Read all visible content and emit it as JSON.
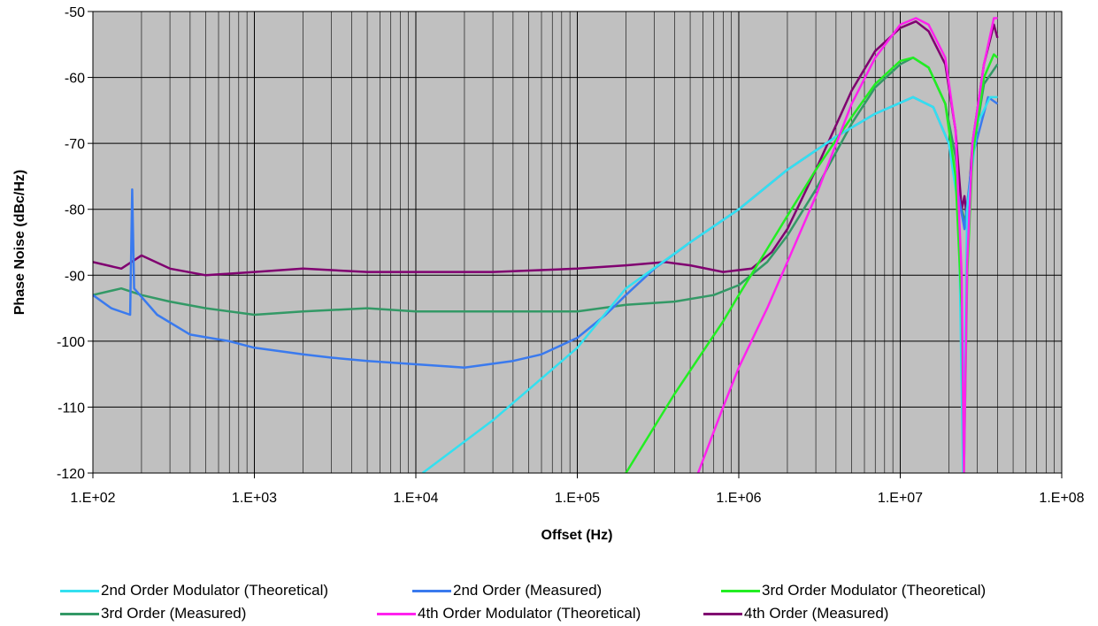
{
  "chart_data": {
    "type": "line",
    "xlabel": "Offset (Hz)",
    "ylabel": "Phase Noise (dBc/Hz)",
    "x_scale": "log",
    "xlim": [
      100,
      100000000
    ],
    "ylim": [
      -120,
      -50
    ],
    "x_ticks": [
      "1.E+02",
      "1.E+03",
      "1.E+04",
      "1.E+05",
      "1.E+06",
      "1.E+07",
      "1.E+08"
    ],
    "y_ticks": [
      "-50",
      "-60",
      "-70",
      "-80",
      "-90",
      "-100",
      "-110",
      "-120"
    ],
    "grid": "on",
    "plot_background": "#c0c0c0",
    "legend_position": "bottom",
    "series": [
      {
        "name": "2nd Order Modulator (Theoretical)",
        "color": "#33e0f0",
        "points": [
          [
            11000,
            -120
          ],
          [
            30000,
            -112
          ],
          [
            100000,
            -101
          ],
          [
            200000,
            -92
          ],
          [
            500000,
            -85
          ],
          [
            1000000,
            -80
          ],
          [
            2000000,
            -74
          ],
          [
            4000000,
            -69
          ],
          [
            7000000,
            -65.5
          ],
          [
            12000000,
            -63
          ],
          [
            16000000,
            -64.5
          ],
          [
            20000000,
            -70
          ],
          [
            23000000,
            -80
          ],
          [
            24500000,
            -120
          ],
          [
            26000000,
            -80
          ],
          [
            30000000,
            -67
          ],
          [
            36000000,
            -63
          ],
          [
            40000000,
            -63
          ]
        ]
      },
      {
        "name": "2nd Order (Measured)",
        "color": "#3a7aee",
        "points": [
          [
            100,
            -93
          ],
          [
            130,
            -95
          ],
          [
            170,
            -96
          ],
          [
            175,
            -77
          ],
          [
            180,
            -92
          ],
          [
            250,
            -96
          ],
          [
            400,
            -99
          ],
          [
            700,
            -100
          ],
          [
            1000,
            -101
          ],
          [
            2000,
            -102
          ],
          [
            3000,
            -102.5
          ],
          [
            5000,
            -103
          ],
          [
            10000,
            -103.5
          ],
          [
            20000,
            -104
          ],
          [
            40000,
            -103
          ],
          [
            60000,
            -102
          ],
          [
            100000,
            -99.5
          ],
          [
            150000,
            -96
          ],
          [
            200000,
            -93
          ],
          [
            300000,
            -89
          ],
          [
            500000,
            -85
          ],
          [
            1000000,
            -80
          ],
          [
            2000000,
            -74
          ],
          [
            4000000,
            -69
          ],
          [
            7000000,
            -65.5
          ],
          [
            12000000,
            -63
          ],
          [
            16000000,
            -64.5
          ],
          [
            20000000,
            -70
          ],
          [
            23000000,
            -78
          ],
          [
            25000000,
            -83
          ],
          [
            28000000,
            -72
          ],
          [
            35000000,
            -63
          ],
          [
            40000000,
            -64
          ]
        ]
      },
      {
        "name": "3rd Order Modulator (Theoretical)",
        "color": "#22ee22",
        "points": [
          [
            200000,
            -120
          ],
          [
            400000,
            -108
          ],
          [
            800000,
            -97
          ],
          [
            1000000,
            -93
          ],
          [
            1500000,
            -86
          ],
          [
            2000000,
            -81
          ],
          [
            3000000,
            -74
          ],
          [
            5000000,
            -66
          ],
          [
            7000000,
            -61
          ],
          [
            10000000,
            -57.5
          ],
          [
            12000000,
            -57
          ],
          [
            15000000,
            -58.5
          ],
          [
            19000000,
            -64
          ],
          [
            22000000,
            -75
          ],
          [
            24000000,
            -95
          ],
          [
            24800000,
            -120
          ],
          [
            26000000,
            -90
          ],
          [
            28000000,
            -72
          ],
          [
            33000000,
            -60
          ],
          [
            38000000,
            -56.5
          ],
          [
            40000000,
            -57
          ]
        ]
      },
      {
        "name": "3rd Order (Measured)",
        "color": "#339966",
        "points": [
          [
            100,
            -93
          ],
          [
            150,
            -92
          ],
          [
            200,
            -93
          ],
          [
            300,
            -94
          ],
          [
            500,
            -95
          ],
          [
            1000,
            -96
          ],
          [
            2000,
            -95.5
          ],
          [
            5000,
            -95
          ],
          [
            10000,
            -95.5
          ],
          [
            30000,
            -95.5
          ],
          [
            100000,
            -95.5
          ],
          [
            200000,
            -94.5
          ],
          [
            400000,
            -94
          ],
          [
            700000,
            -93
          ],
          [
            1000000,
            -91.5
          ],
          [
            1500000,
            -88
          ],
          [
            2000000,
            -84
          ],
          [
            3000000,
            -77
          ],
          [
            5000000,
            -67
          ],
          [
            7000000,
            -61.5
          ],
          [
            10000000,
            -58
          ],
          [
            12000000,
            -57
          ],
          [
            15000000,
            -58.5
          ],
          [
            19000000,
            -64
          ],
          [
            22000000,
            -72
          ],
          [
            24000000,
            -80
          ],
          [
            26000000,
            -83
          ],
          [
            28000000,
            -72
          ],
          [
            33000000,
            -61
          ],
          [
            40000000,
            -58
          ]
        ]
      },
      {
        "name": "4th Order Modulator (Theoretical)",
        "color": "#ff22ee",
        "points": [
          [
            560000,
            -120
          ],
          [
            800000,
            -110
          ],
          [
            1000000,
            -104
          ],
          [
            1500000,
            -95
          ],
          [
            2000000,
            -88
          ],
          [
            3000000,
            -78
          ],
          [
            5000000,
            -64
          ],
          [
            7000000,
            -57
          ],
          [
            10000000,
            -52
          ],
          [
            12500000,
            -51
          ],
          [
            15000000,
            -52
          ],
          [
            19000000,
            -57
          ],
          [
            22000000,
            -68
          ],
          [
            24000000,
            -90
          ],
          [
            24800000,
            -120
          ],
          [
            26000000,
            -88
          ],
          [
            28000000,
            -70
          ],
          [
            33000000,
            -58
          ],
          [
            38000000,
            -51
          ],
          [
            40000000,
            -51
          ]
        ]
      },
      {
        "name": "4th Order (Measured)",
        "color": "#800070",
        "points": [
          [
            100,
            -88
          ],
          [
            150,
            -89
          ],
          [
            200,
            -87
          ],
          [
            300,
            -89
          ],
          [
            500,
            -90
          ],
          [
            1000,
            -89.5
          ],
          [
            2000,
            -89
          ],
          [
            5000,
            -89.5
          ],
          [
            10000,
            -89.5
          ],
          [
            30000,
            -89.5
          ],
          [
            100000,
            -89
          ],
          [
            200000,
            -88.5
          ],
          [
            350000,
            -88
          ],
          [
            500000,
            -88.5
          ],
          [
            800000,
            -89.5
          ],
          [
            1200000,
            -89
          ],
          [
            1600000,
            -86.5
          ],
          [
            2000000,
            -83
          ],
          [
            3000000,
            -74
          ],
          [
            5000000,
            -62
          ],
          [
            7000000,
            -56
          ],
          [
            10000000,
            -52.5
          ],
          [
            12500000,
            -51.5
          ],
          [
            15000000,
            -53
          ],
          [
            19000000,
            -58
          ],
          [
            22000000,
            -68
          ],
          [
            24000000,
            -80
          ],
          [
            25000000,
            -78
          ],
          [
            26000000,
            -82
          ],
          [
            28000000,
            -70
          ],
          [
            33000000,
            -58
          ],
          [
            38000000,
            -52
          ],
          [
            40000000,
            -54
          ]
        ]
      }
    ]
  }
}
